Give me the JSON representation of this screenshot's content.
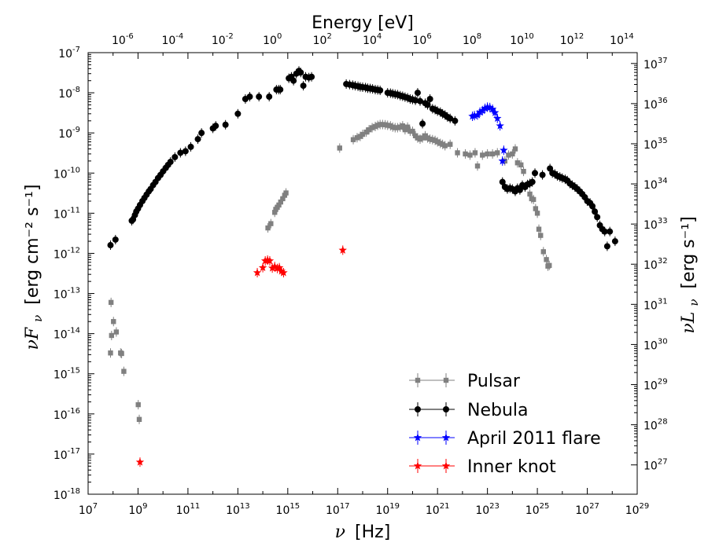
{
  "chart_data": {
    "type": "scatter",
    "x_scale": "log",
    "y_scale": "log",
    "xlabel_text": "[Hz]",
    "xlabel_symbol": "ν",
    "top_xlabel": "Energy [eV]",
    "ylabel_symbol": "νF",
    "ylabel_sub": "ν",
    "ylabel_units": "[erg cm⁻² s⁻¹]",
    "right_ylabel_symbol": "νL",
    "right_ylabel_sub": "ν",
    "right_ylabel_units": "[erg s⁻¹]",
    "xlim": [
      10000000.0,
      1e+29
    ],
    "ylim": [
      1e-18,
      1e-07
    ],
    "x_ticks": [
      {
        "b": "10",
        "e": "7"
      },
      {
        "b": "10",
        "e": "9"
      },
      {
        "b": "10",
        "e": "11"
      },
      {
        "b": "10",
        "e": "13"
      },
      {
        "b": "10",
        "e": "15"
      },
      {
        "b": "10",
        "e": "17"
      },
      {
        "b": "10",
        "e": "19"
      },
      {
        "b": "10",
        "e": "21"
      },
      {
        "b": "10",
        "e": "23"
      },
      {
        "b": "10",
        "e": "25"
      },
      {
        "b": "10",
        "e": "27"
      },
      {
        "b": "10",
        "e": "29"
      }
    ],
    "top_ticks": [
      {
        "b": "10",
        "e": "-6"
      },
      {
        "b": "10",
        "e": "-4"
      },
      {
        "b": "10",
        "e": "-2"
      },
      {
        "b": "10",
        "e": "0"
      },
      {
        "b": "10",
        "e": "2"
      },
      {
        "b": "10",
        "e": "4"
      },
      {
        "b": "10",
        "e": "6"
      },
      {
        "b": "10",
        "e": "8"
      },
      {
        "b": "10",
        "e": "10"
      },
      {
        "b": "10",
        "e": "12"
      },
      {
        "b": "10",
        "e": "14"
      }
    ],
    "y_ticks": [
      {
        "b": "10",
        "e": "-7"
      },
      {
        "b": "10",
        "e": "-8"
      },
      {
        "b": "10",
        "e": "-9"
      },
      {
        "b": "10",
        "e": "-10"
      },
      {
        "b": "10",
        "e": "-11"
      },
      {
        "b": "10",
        "e": "-12"
      },
      {
        "b": "10",
        "e": "-13"
      },
      {
        "b": "10",
        "e": "-14"
      },
      {
        "b": "10",
        "e": "-15"
      },
      {
        "b": "10",
        "e": "-16"
      },
      {
        "b": "10",
        "e": "-17"
      },
      {
        "b": "10",
        "e": "-18"
      }
    ],
    "right_ticks": [
      {
        "b": "10",
        "e": "37"
      },
      {
        "b": "10",
        "e": "36"
      },
      {
        "b": "10",
        "e": "35"
      },
      {
        "b": "10",
        "e": "34"
      },
      {
        "b": "10",
        "e": "33"
      },
      {
        "b": "10",
        "e": "32"
      },
      {
        "b": "10",
        "e": "31"
      },
      {
        "b": "10",
        "e": "30"
      },
      {
        "b": "10",
        "e": "29"
      },
      {
        "b": "10",
        "e": "28"
      },
      {
        "b": "10",
        "e": "27"
      }
    ],
    "legend_placement": "lower-right",
    "series": [
      {
        "name": "Pulsar",
        "marker": "square",
        "color": "#808080",
        "points": [
          [
            79000000.0,
            3.3e-15
          ],
          [
            83000000.0,
            6e-14
          ],
          [
            87000000.0,
            9e-15
          ],
          [
            104000000.0,
            2e-14
          ],
          [
            135000000.0,
            1.1e-14
          ],
          [
            200000000.0,
            3.3e-15
          ],
          [
            220000000.0,
            3.2e-15
          ],
          [
            270000000.0,
            1.15e-15
          ],
          [
            1020000000.0,
            1.7e-16
          ],
          [
            1120000000.0,
            7.3e-17
          ],
          [
            160000000000000.0,
            4.3e-12
          ],
          [
            210000000000000.0,
            5.5e-12
          ],
          [
            300000000000000.0,
            1.05e-11
          ],
          [
            330000000000000.0,
            1.25e-11
          ],
          [
            380000000000000.0,
            1.4e-11
          ],
          [
            440000000000000.0,
            1.6e-11
          ],
          [
            520000000000000.0,
            1.9e-11
          ],
          [
            630000000000000.0,
            2.3e-11
          ],
          [
            750000000000000.0,
            2.8e-11
          ],
          [
            850000000000000.0,
            3.2e-11
          ],
          [
            1.2e+17,
            4.2e-10
          ],
          [
            4.2e+17,
            6.8e-10
          ],
          [
            6e+17,
            7.6e-10
          ],
          [
            8e+17,
            8.2e-10
          ],
          [
            1e+18,
            9.2e-10
          ],
          [
            1.4e+18,
            1.05e-09
          ],
          [
            1.8e+18,
            1.2e-09
          ],
          [
            2.4e+18,
            1.35e-09
          ],
          [
            3.2e+18,
            1.45e-09
          ],
          [
            4e+18,
            1.55e-09
          ],
          [
            5e+18,
            1.62e-09
          ],
          [
            6.3e+18,
            1.62e-09
          ],
          [
            8e+18,
            1.6e-09
          ],
          [
            1e+19,
            1.55e-09
          ],
          [
            1.3e+19,
            1.5e-09
          ],
          [
            1.6e+19,
            1.4e-09
          ],
          [
            2e+19,
            1.35e-09
          ],
          [
            2.5e+19,
            1.35e-09
          ],
          [
            3.2e+19,
            1.4e-09
          ],
          [
            4e+19,
            1.5e-09
          ],
          [
            5e+19,
            1.2e-09
          ],
          [
            6.3e+19,
            1.4e-09
          ],
          [
            8e+19,
            1.1e-09
          ],
          [
            1e+20,
            1.1e-09
          ],
          [
            1.3e+20,
            8.5e-10
          ],
          [
            1.6e+20,
            7.5e-10
          ],
          [
            2e+20,
            7e-10
          ],
          [
            2.5e+20,
            7.5e-10
          ],
          [
            3.2e+20,
            8.5e-10
          ],
          [
            4e+20,
            7.5e-10
          ],
          [
            5e+20,
            7e-10
          ],
          [
            6.3e+20,
            6.8e-10
          ],
          [
            8e+20,
            6.5e-10
          ],
          [
            1e+21,
            6e-10
          ],
          [
            1.3e+21,
            5.5e-10
          ],
          [
            1.6e+21,
            5.2e-10
          ],
          [
            2e+21,
            4.8e-10
          ],
          [
            3.2e+21,
            5.2e-10
          ],
          [
            6.3e+21,
            3.2e-10
          ],
          [
            1.3e+22,
            3e-10
          ],
          [
            2e+22,
            2.8e-10
          ],
          [
            3.2e+22,
            3.2e-10
          ],
          [
            4e+22,
            1.5e-10
          ],
          [
            6.3e+22,
            2.8e-10
          ],
          [
            1e+23,
            3e-10
          ],
          [
            1.6e+23,
            3e-10
          ],
          [
            2.5e+23,
            3.2e-10
          ],
          [
            5e+23,
            2e-10
          ],
          [
            7e+23,
            2.8e-10
          ],
          [
            1e+24,
            3e-10
          ],
          [
            1.3e+24,
            4e-10
          ],
          [
            1.6e+24,
            1.8e-10
          ],
          [
            2.2e+24,
            1.6e-10
          ],
          [
            2.8e+24,
            1.1e-10
          ],
          [
            5e+24,
            3e-11
          ],
          [
            5.9e+24,
            2.3e-11
          ],
          [
            7e+24,
            2.2e-11
          ],
          [
            8.5e+24,
            1.3e-11
          ],
          [
            1e+25,
            1e-11
          ],
          [
            1.15e+25,
            4e-12
          ],
          [
            1.35e+25,
            2.8e-12
          ],
          [
            1.75e+25,
            1.1e-12
          ],
          [
            2.3e+25,
            7e-13
          ],
          [
            2.65e+25,
            4.8e-13
          ],
          [
            3e+25,
            5e-13
          ]
        ]
      },
      {
        "name": "Nebula",
        "marker": "circle",
        "color": "#000000",
        "points": [
          [
            79000000.0,
            1.6e-12
          ],
          [
            125000000.0,
            2.2e-12
          ],
          [
            560000000.0,
            6.5e-12
          ],
          [
            630000000.0,
            7e-12
          ],
          [
            750000000.0,
            9e-12
          ],
          [
            850000000.0,
            1.1e-11
          ],
          [
            1000000000.0,
            1.3e-11
          ],
          [
            1200000000.0,
            1.6e-11
          ],
          [
            1500000000.0,
            2e-11
          ],
          [
            1800000000.0,
            2.4e-11
          ],
          [
            2200000000.0,
            2.9e-11
          ],
          [
            2700000000.0,
            3.5e-11
          ],
          [
            3200000000.0,
            4e-11
          ],
          [
            4000000000.0,
            5e-11
          ],
          [
            5000000000.0,
            6e-11
          ],
          [
            6300000000.0,
            7.5e-11
          ],
          [
            8000000000.0,
            9e-11
          ],
          [
            10000000000.0,
            1.1e-10
          ],
          [
            13000000000.0,
            1.35e-10
          ],
          [
            16000000000.0,
            1.6e-10
          ],
          [
            20000000000.0,
            1.9e-10
          ],
          [
            30000000000.0,
            2.5e-10
          ],
          [
            50000000000.0,
            3.2e-10
          ],
          [
            80000000000.0,
            3.5e-10
          ],
          [
            130000000000.0,
            4.5e-10
          ],
          [
            250000000000.0,
            7e-10
          ],
          [
            350000000000.0,
            1e-09
          ],
          [
            1000000000000.0,
            1.3e-09
          ],
          [
            1300000000000.0,
            1.5e-09
          ],
          [
            3200000000000.0,
            1.6e-09
          ],
          [
            10000000000000.0,
            3e-09
          ],
          [
            20000000000000.0,
            7e-09
          ],
          [
            30000000000000.0,
            8e-09
          ],
          [
            70000000000000.0,
            8e-09
          ],
          [
            180000000000000.0,
            8e-09
          ],
          [
            350000000000000.0,
            1.2e-08
          ],
          [
            430000000000000.0,
            1.2e-08
          ],
          [
            500000000000000.0,
            1.2e-08
          ],
          [
            1100000000000000.0,
            2.3e-08
          ],
          [
            1400000000000000.0,
            2.5e-08
          ],
          [
            1700000000000000.0,
            2e-08
          ],
          [
            2200000000000000.0,
            3e-08
          ],
          [
            2800000000000000.0,
            3.5e-08
          ],
          [
            3300000000000000.0,
            3.2e-08
          ],
          [
            4200000000000000.0,
            1.5e-08
          ],
          [
            5200000000000000.0,
            2.5e-08
          ],
          [
            7000000000000000.0,
            2.4e-08
          ],
          [
            9000000000000000.0,
            2.5e-08
          ],
          [
            2.2e+17,
            1.65e-08
          ],
          [
            3e+17,
            1.6e-08
          ],
          [
            4e+17,
            1.55e-08
          ],
          [
            5e+17,
            1.5e-08
          ],
          [
            6.5e+17,
            1.45e-08
          ],
          [
            8e+17,
            1.4e-08
          ],
          [
            1e+18,
            1.38e-08
          ],
          [
            1.3e+18,
            1.35e-08
          ],
          [
            1.6e+18,
            1.3e-08
          ],
          [
            2e+18,
            1.28e-08
          ],
          [
            2.5e+18,
            1.25e-08
          ],
          [
            3.2e+18,
            1.2e-08
          ],
          [
            4e+18,
            1.18e-08
          ],
          [
            5e+18,
            1.15e-08
          ],
          [
            1e+19,
            1e-08
          ],
          [
            1.3e+19,
            9.8e-09
          ],
          [
            1.6e+19,
            9.5e-09
          ],
          [
            2e+19,
            9.2e-09
          ],
          [
            2.5e+19,
            9e-09
          ],
          [
            3.2e+19,
            8.5e-09
          ],
          [
            4e+19,
            8.2e-09
          ],
          [
            5e+19,
            7.8e-09
          ],
          [
            6.3e+19,
            7.5e-09
          ],
          [
            8e+19,
            7e-09
          ],
          [
            1e+20,
            6.8e-09
          ],
          [
            1.3e+20,
            6.5e-09
          ],
          [
            1.6e+20,
            1e-08
          ],
          [
            2e+20,
            6.2e-09
          ],
          [
            2.5e+20,
            1.7e-09
          ],
          [
            3.2e+20,
            5.5e-09
          ],
          [
            4e+20,
            5e-09
          ],
          [
            5e+20,
            7e-09
          ],
          [
            6.3e+20,
            4e-09
          ],
          [
            8e+20,
            3.8e-09
          ],
          [
            1e+21,
            3.5e-09
          ],
          [
            1.3e+21,
            3.3e-09
          ],
          [
            1.6e+21,
            3e-09
          ],
          [
            2e+21,
            2.8e-09
          ],
          [
            2.5e+21,
            2.5e-09
          ],
          [
            3.2e+21,
            2.3e-09
          ],
          [
            5e+21,
            2e-09
          ],
          [
            4e+23,
            6e-11
          ],
          [
            5e+23,
            4.5e-11
          ],
          [
            6.3e+23,
            4e-11
          ],
          [
            8e+23,
            4.2e-11
          ],
          [
            1e+24,
            4e-11
          ],
          [
            1.3e+24,
            3.5e-11
          ],
          [
            1.6e+24,
            4.2e-11
          ],
          [
            2e+24,
            3.8e-11
          ],
          [
            2.5e+24,
            5e-11
          ],
          [
            3.2e+24,
            4.5e-11
          ],
          [
            4e+24,
            5.2e-11
          ],
          [
            5e+24,
            5.5e-11
          ],
          [
            6.3e+24,
            6e-11
          ],
          [
            8e+24,
            1e-10
          ],
          [
            1.6e+25,
            9e-11
          ],
          [
            3.2e+25,
            1.3e-10
          ],
          [
            4e+25,
            1e-10
          ],
          [
            5e+25,
            9.5e-11
          ],
          [
            6.3e+25,
            8.5e-11
          ],
          [
            8e+25,
            8e-11
          ],
          [
            1e+26,
            7.5e-11
          ],
          [
            1.3e+26,
            7e-11
          ],
          [
            1.6e+26,
            6.5e-11
          ],
          [
            2e+26,
            5.5e-11
          ],
          [
            2.5e+26,
            5e-11
          ],
          [
            3.2e+26,
            4.5e-11
          ],
          [
            4e+26,
            4e-11
          ],
          [
            5e+26,
            3.5e-11
          ],
          [
            6.3e+26,
            3e-11
          ],
          [
            8e+26,
            2.5e-11
          ],
          [
            1e+27,
            2e-11
          ],
          [
            1.3e+27,
            1.8e-11
          ],
          [
            1.6e+27,
            1.5e-11
          ],
          [
            2e+27,
            1.1e-11
          ],
          [
            2.5e+27,
            8e-12
          ],
          [
            3.2e+27,
            5e-12
          ],
          [
            4e+27,
            4e-12
          ],
          [
            5e+27,
            3.5e-12
          ],
          [
            6.3e+27,
            1.5e-12
          ],
          [
            8e+27,
            3.5e-12
          ],
          [
            1.3e+28,
            2e-12
          ]
        ]
      },
      {
        "name": "April 2011 flare",
        "marker": "star",
        "color": "#0000ff",
        "points": [
          [
            2.5e+22,
            2.6e-09
          ],
          [
            3e+22,
            2.7e-09
          ],
          [
            4e+22,
            2.8e-09
          ],
          [
            5e+22,
            3.3e-09
          ],
          [
            6.3e+22,
            3.6e-09
          ],
          [
            8e+22,
            4.1e-09
          ],
          [
            1e+23,
            4.4e-09
          ],
          [
            1.25e+23,
            4.3e-09
          ],
          [
            1.6e+23,
            3.9e-09
          ],
          [
            2e+23,
            3.2e-09
          ],
          [
            2.5e+23,
            2.3e-09
          ],
          [
            3.2e+23,
            1.5e-09
          ],
          [
            4e+23,
            2e-10
          ],
          [
            4.5e+23,
            3.7e-10
          ]
        ]
      },
      {
        "name": "Inner knot",
        "marker": "star",
        "color": "#ff0000",
        "points": [
          [
            1200000000.0,
            6.3e-18
          ],
          [
            60000000000000.0,
            3.3e-13
          ],
          [
            100000000000000.0,
            4.4e-13
          ],
          [
            125000000000000.0,
            6.5e-13
          ],
          [
            155000000000000.0,
            6.8e-13
          ],
          [
            190000000000000.0,
            6.5e-13
          ],
          [
            240000000000000.0,
            4.3e-13
          ],
          [
            300000000000000.0,
            4.7e-13
          ],
          [
            380000000000000.0,
            4.2e-13
          ],
          [
            460000000000000.0,
            4.4e-13
          ],
          [
            560000000000000.0,
            3.6e-13
          ],
          [
            680000000000000.0,
            3.3e-13
          ],
          [
            1.6e+17,
            1.2e-12
          ]
        ]
      }
    ]
  }
}
